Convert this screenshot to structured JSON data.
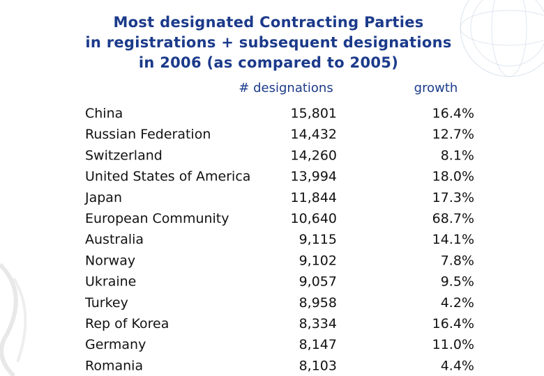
{
  "title": [
    "Most designated Contracting Parties",
    "in registrations + subsequent designations",
    "in 2006 (as compared to 2005)"
  ],
  "table": {
    "headers": [
      "# designations",
      "growth"
    ],
    "rows": [
      [
        "China",
        "15,801",
        "16.4%"
      ],
      [
        "Russian Federation",
        "14,432",
        "12.7%"
      ],
      [
        "Switzerland",
        "14,260",
        "8.1%"
      ],
      [
        "United States of America",
        "13,994",
        "18.0%"
      ],
      [
        "Japan",
        "11,844",
        "17.3%"
      ],
      [
        "European Community",
        "10,640",
        "68.7%"
      ],
      [
        "Australia",
        "9,115",
        "14.1%"
      ],
      [
        "Norway",
        "9,102",
        "7.8%"
      ],
      [
        "Ukraine",
        "9,057",
        "9.5%"
      ],
      [
        "Turkey",
        "8,958",
        "4.2%"
      ],
      [
        "Rep of Korea",
        "8,334",
        "16.4%"
      ],
      [
        "Germany",
        "8,147",
        "11.0%"
      ],
      [
        "Romania",
        "8,103",
        "4.4%"
      ]
    ]
  }
}
